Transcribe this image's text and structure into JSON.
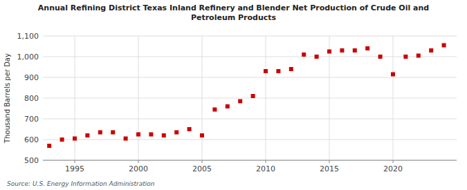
{
  "chart_data": {
    "type": "scatter",
    "title": "Annual Refining District Texas Inland Refinery and Blender Net Production of Crude Oil and\nPetroleum Products",
    "y_label": "Thousand Barrels per Day",
    "annotations": [
      "Source: U.S. Energy Information Administration"
    ],
    "x": [
      1993,
      1994,
      1995,
      1996,
      1997,
      1998,
      1999,
      2000,
      2001,
      2002,
      2003,
      2004,
      2005,
      2006,
      2007,
      2008,
      2009,
      2010,
      2011,
      2012,
      2013,
      2014,
      2015,
      2016,
      2017,
      2018,
      2019,
      2020,
      2021,
      2022,
      2023,
      2024
    ],
    "values": [
      570,
      600,
      605,
      620,
      635,
      635,
      605,
      625,
      625,
      620,
      635,
      650,
      620,
      745,
      760,
      785,
      810,
      930,
      930,
      940,
      1010,
      1000,
      1025,
      1030,
      1030,
      1040,
      1000,
      915,
      1000,
      1005,
      1030,
      1055
    ],
    "color": "#cc0000",
    "marker": "square",
    "xlim": [
      1992.5,
      2025
    ],
    "ylim": [
      500,
      1100
    ],
    "xticks": [
      1995,
      2000,
      2005,
      2010,
      2015,
      2020
    ],
    "yticks": [
      500,
      600,
      700,
      800,
      900,
      {
        "value": 1000,
        "label": "1,000"
      },
      {
        "value": 1100,
        "label": "1,100"
      }
    ],
    "grid": true
  }
}
